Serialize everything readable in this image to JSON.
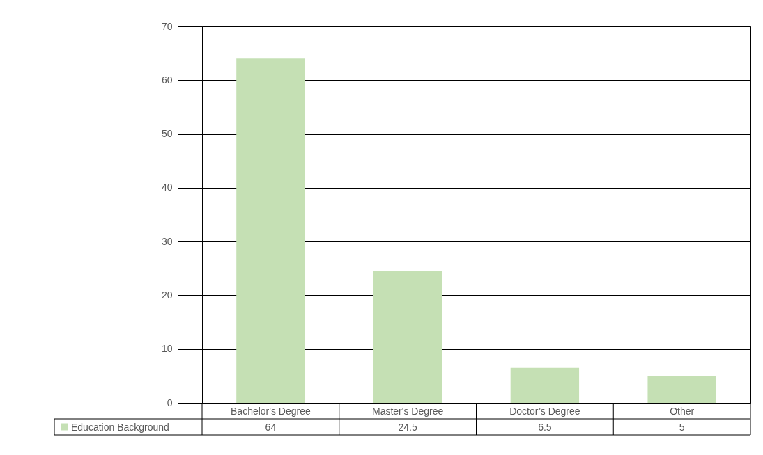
{
  "chart_data": {
    "type": "bar",
    "categories": [
      "Bachelor's Degree",
      "Master's Degree",
      "Doctor’s Degree",
      "Other"
    ],
    "series": [
      {
        "name": "Education Background",
        "color": "#c5e0b4",
        "values": [
          64,
          24.5,
          6.5,
          5
        ]
      }
    ],
    "ylim": [
      0,
      70
    ],
    "yticks": [
      0,
      10,
      20,
      30,
      40,
      50,
      60,
      70
    ],
    "grid": "y",
    "legend": "bottom",
    "data_labels": true
  }
}
